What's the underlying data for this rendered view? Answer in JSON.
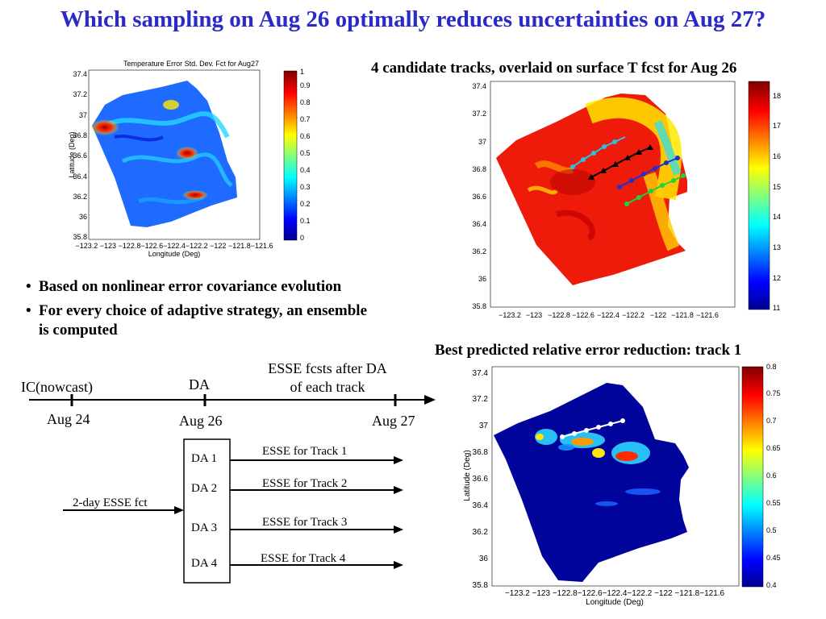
{
  "title": "Which sampling on Aug 26 optimally reduces uncertainties on Aug 27?",
  "left_map": {
    "title": "Temperature Error Std. Dev. Fct for Aug27",
    "xlabel": "Longitude (Deg)",
    "ylabel": "Latitude (Deg)",
    "xticks": "−123.2 −123 −122.8−122.6−122.4−122.2 −122 −121.8−121.6",
    "yticks": [
      "37.4",
      "37.2",
      "37",
      "36.8",
      "36.6",
      "36.4",
      "36.2",
      "36",
      "35.8"
    ],
    "colorbar_ticks": [
      "1",
      "0.9",
      "0.8",
      "0.7",
      "0.6",
      "0.5",
      "0.4",
      "0.3",
      "0.2",
      "0.1",
      "0"
    ]
  },
  "right_map": {
    "caption": "4 candidate tracks, overlaid on surface T fcst for Aug 26",
    "xticks": [
      "−123.2",
      "−123",
      "−122.8",
      "−122.6",
      "−122.4",
      "−122.2",
      "−122",
      "−121.8",
      "−121.6"
    ],
    "yticks": [
      "37.4",
      "37.2",
      "37",
      "36.8",
      "36.6",
      "36.4",
      "36.2",
      "36",
      "35.8"
    ],
    "colorbar_ticks": [
      "18",
      "17",
      "16",
      "15",
      "14",
      "13",
      "12",
      "11"
    ],
    "track_colors": [
      "#2ac0e8",
      "#000000",
      "#2030d0",
      "#20d040"
    ]
  },
  "bottom_map": {
    "caption": "Best predicted relative error reduction: track 1",
    "xlabel": "Longitude (Deg)",
    "ylabel": "Latitude (Deg)",
    "xticks": "−123.2 −123 −122.8−122.6−122.4−122.2 −122 −121.8−121.6",
    "yticks": [
      "37.4",
      "37.2",
      "37",
      "36.8",
      "36.6",
      "36.4",
      "36.2",
      "36",
      "35.8"
    ],
    "colorbar_ticks": [
      "0.8",
      "0.75",
      "0.7",
      "0.65",
      "0.6",
      "0.55",
      "0.5",
      "0.45",
      "0.4"
    ]
  },
  "bullets": [
    "Based on nonlinear error covariance evolution",
    "For every choice of adaptive strategy, an ensemble is computed"
  ],
  "timeline": {
    "ic": "IC(nowcast)",
    "da": "DA",
    "esse_line1": "ESSE fcsts after DA",
    "esse_line2": "of each track",
    "aug24": "Aug 24",
    "aug26": "Aug 26",
    "aug27": "Aug 27"
  },
  "diagram": {
    "fct": "2-day ESSE fct",
    "da": [
      "DA 1",
      "DA 2",
      "DA 3",
      "DA 4"
    ],
    "esse": [
      "ESSE for Track 1",
      "ESSE for Track 2",
      "ESSE for Track 3",
      "ESSE for Track 4"
    ]
  }
}
